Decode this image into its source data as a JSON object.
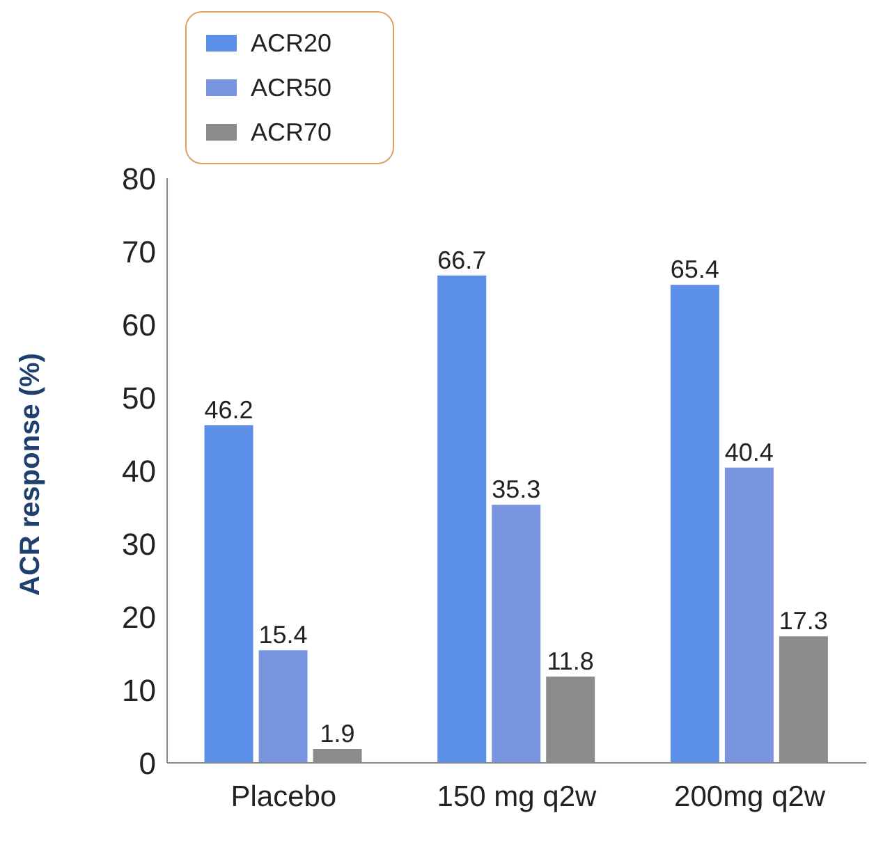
{
  "chart_data": {
    "type": "bar",
    "ylabel": "ACR response (%)",
    "categories": [
      "Placebo",
      "150 mg q2w",
      "200mg q2w"
    ],
    "series": [
      {
        "name": "ACR20",
        "color": "#5b8fe8",
        "values": [
          46.2,
          66.7,
          65.4
        ]
      },
      {
        "name": "ACR50",
        "color": "#7a95e0",
        "values": [
          15.4,
          35.3,
          40.4
        ]
      },
      {
        "name": "ACR70",
        "color": "#8c8c8c",
        "values": [
          1.9,
          11.8,
          17.3
        ]
      }
    ],
    "ylim": [
      0,
      80
    ],
    "yticks": [
      0,
      10,
      20,
      30,
      40,
      50,
      60,
      70,
      80
    ],
    "grid": false,
    "legend": "top left",
    "data_labels": true
  }
}
